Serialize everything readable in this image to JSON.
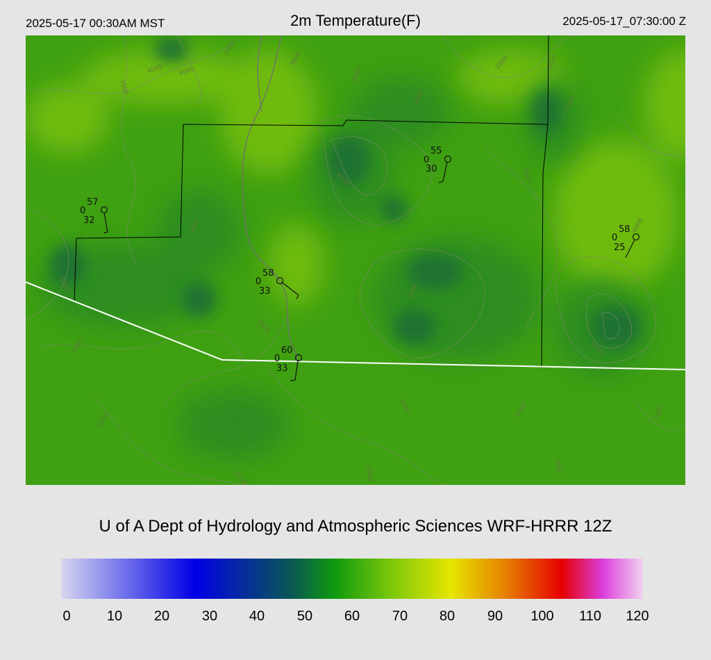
{
  "header": {
    "local_time": "2025-05-17 00:30AM MST",
    "title": "2m Temperature(F)",
    "utc_time": "2025-05-17_07:30:00 Z"
  },
  "credit": "U of A Dept of Hydrology and Atmospheric Sciences WRF-HRRR 12Z",
  "legend": {
    "ticks": [
      "0",
      "10",
      "20",
      "30",
      "40",
      "50",
      "60",
      "70",
      "80",
      "90",
      "100",
      "110",
      "120"
    ],
    "colors": {
      "light_blue": "#d6d6f0",
      "blue": "#0000e6",
      "teal": "#0a5a50",
      "green": "#0f9a0f",
      "lime": "#7fc80a",
      "yellow": "#e6e600",
      "orange": "#e67800",
      "red": "#e60000",
      "magenta": "#dc3cdc",
      "pink": "#f0d2f0"
    }
  },
  "map": {
    "colors": {
      "base_green": "#3fa012",
      "warm_green": "#78c00a",
      "cool_green": "#1f7c2a",
      "contour": "#7a8a6a",
      "boundary": "#000000",
      "border": "#ffffff"
    },
    "contour_labels": [
      "4000",
      "4000",
      "3500",
      "3500",
      "3000",
      "4000",
      "4500",
      "3500",
      "5000",
      "6000",
      "4000",
      "4500",
      "4000",
      "4000",
      "3500",
      "3000",
      "5500",
      "5000",
      "3000",
      "3500",
      "4000",
      "4000",
      "3000",
      "3500",
      "4000",
      "3500"
    ],
    "stations": [
      {
        "temp": "57",
        "calm": "0",
        "dew": "32"
      },
      {
        "temp": "58",
        "calm": "0",
        "dew": "33"
      },
      {
        "temp": "55",
        "calm": "0",
        "dew": "30"
      },
      {
        "temp": "58",
        "calm": "0",
        "dew": "25"
      },
      {
        "temp": "60",
        "calm": "0",
        "dew": "33"
      }
    ]
  }
}
